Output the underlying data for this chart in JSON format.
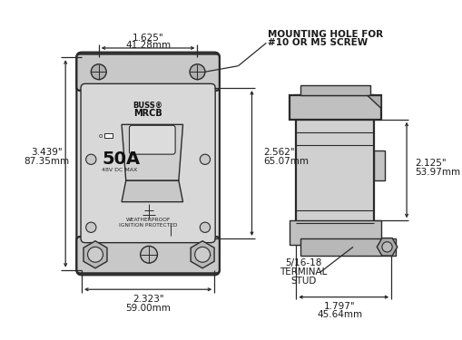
{
  "bg_color": "#ffffff",
  "line_color": "#2a2a2a",
  "text_color": "#1a1a1a",
  "fig_width": 5.1,
  "fig_height": 3.75,
  "dpi": 100,
  "annotations": {
    "top_width_label1": "1.625\"",
    "top_width_label2": "41.28mm",
    "height_label1": "3.439\"",
    "height_label2": "87.35mm",
    "bottom_width_label1": "2.323\"",
    "bottom_width_label2": "59.00mm",
    "right_height_label1": "2.562\"",
    "right_height_label2": "65.07mm",
    "side_width_label1": "2.125\"",
    "side_width_label2": "53.97mm",
    "side_depth_label1": "1.797\"",
    "side_depth_label2": "45.64mm",
    "mounting_hole_line1": "MOUNTING HOLE FOR",
    "mounting_hole_line2": "#10 OR M5 SCREW",
    "terminal_stud_line1": "5/16-18",
    "terminal_stud_line2": "TERMINAL",
    "terminal_stud_line3": "STUD",
    "breaker_brand_line1": "BUSS®",
    "breaker_brand_line2": "MRCB",
    "breaker_rating": "50A",
    "breaker_voltage": "48V DC MAX",
    "breaker_wp_line1": "WEATHERPROOF",
    "breaker_wp_line2": "IGNITION PROTECTED"
  }
}
